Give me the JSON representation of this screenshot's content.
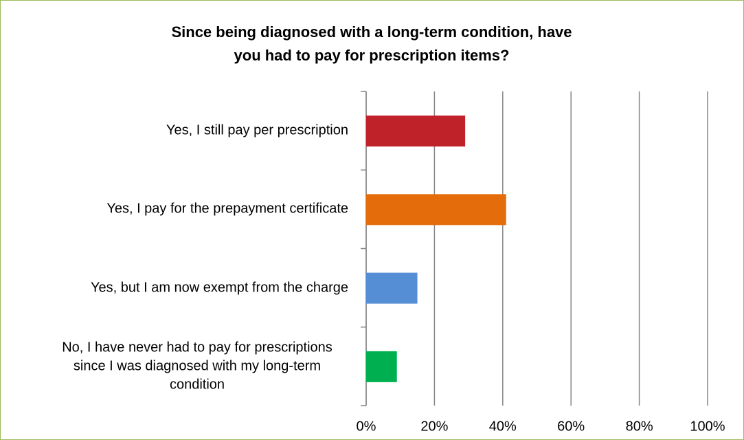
{
  "chart_data": {
    "type": "barh",
    "title": "Since being diagnosed with a long-term condition, have you had to pay for prescription items?",
    "categories": [
      "Yes, I still pay per prescription",
      "Yes, I pay for the prepayment certificate",
      "Yes, but I am now exempt from the charge",
      "No, I have never had to pay for prescriptions since I was diagnosed with my long-term condition"
    ],
    "values": [
      29,
      41,
      15,
      9
    ],
    "colors": [
      "#c0222a",
      "#e46c0a",
      "#558ed5",
      "#00b050"
    ],
    "xlim": [
      0,
      100
    ],
    "xticks": [
      {
        "value": 0,
        "label": "0%"
      },
      {
        "value": 20,
        "label": "20%"
      },
      {
        "value": 40,
        "label": "40%"
      },
      {
        "value": 60,
        "label": "60%"
      },
      {
        "value": 80,
        "label": "80%"
      },
      {
        "value": 100,
        "label": "100%"
      }
    ],
    "grid": true
  }
}
